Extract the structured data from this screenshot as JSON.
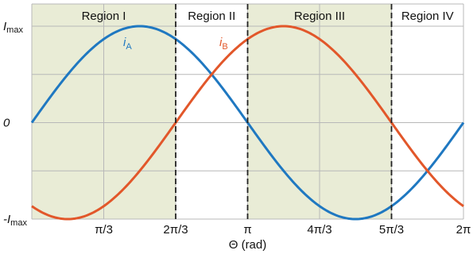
{
  "chart_data": {
    "type": "line",
    "xlabel": "Θ (rad)",
    "ylabel": "",
    "xlim": [
      0,
      6.2832
    ],
    "ylim": [
      -1,
      1
    ],
    "x_ticks": [
      {
        "value": 1.0472,
        "label": "π/3"
      },
      {
        "value": 2.0944,
        "label": "2π/3"
      },
      {
        "value": 3.1416,
        "label": "π"
      },
      {
        "value": 4.1888,
        "label": "4π/3"
      },
      {
        "value": 5.236,
        "label": "5π/3"
      },
      {
        "value": 6.2832,
        "label": "2π"
      }
    ],
    "y_ticks": [
      {
        "value": 1,
        "label_main": "I",
        "label_sub": "max"
      },
      {
        "value": 0,
        "label_main": "0",
        "label_sub": ""
      },
      {
        "value": -1,
        "label_main": "-I",
        "label_sub": "max"
      }
    ],
    "grid": true,
    "regions": [
      {
        "label": "Region I",
        "x0": 0,
        "x1": 2.0944,
        "shaded": true
      },
      {
        "label": "Region II",
        "x0": 2.0944,
        "x1": 3.1416,
        "shaded": false
      },
      {
        "label": "Region III",
        "x0": 3.1416,
        "x1": 5.236,
        "shaded": true
      },
      {
        "label": "Region IV",
        "x0": 5.236,
        "x1": 6.2832,
        "shaded": false
      }
    ],
    "series": [
      {
        "label_main": "i",
        "label_sub": "A",
        "color": "#1f78c1",
        "x": [
          0,
          0.5236,
          1.0472,
          1.5708,
          2.0944,
          2.618,
          3.1416,
          3.6652,
          4.1888,
          4.7124,
          5.236,
          5.7596,
          6.2832
        ],
        "y": [
          0,
          0.5,
          0.866,
          1.0,
          0.866,
          0.5,
          0,
          -0.5,
          -0.866,
          -1.0,
          -0.866,
          -0.5,
          0
        ]
      },
      {
        "label_main": "i",
        "label_sub": "B",
        "color": "#e2572a",
        "x": [
          0,
          0.5236,
          1.0472,
          1.5708,
          2.0944,
          2.618,
          3.1416,
          3.6652,
          4.1888,
          4.7124,
          5.236,
          5.7596,
          6.2832
        ],
        "y": [
          -0.866,
          -1.0,
          -0.866,
          -0.5,
          0,
          0.5,
          0.866,
          1.0,
          0.866,
          0.5,
          0,
          -0.5,
          -0.866
        ]
      }
    ],
    "colors": {
      "shade": "#e9ecd6",
      "grid": "#b8b8b8",
      "divider": "#222222"
    }
  }
}
